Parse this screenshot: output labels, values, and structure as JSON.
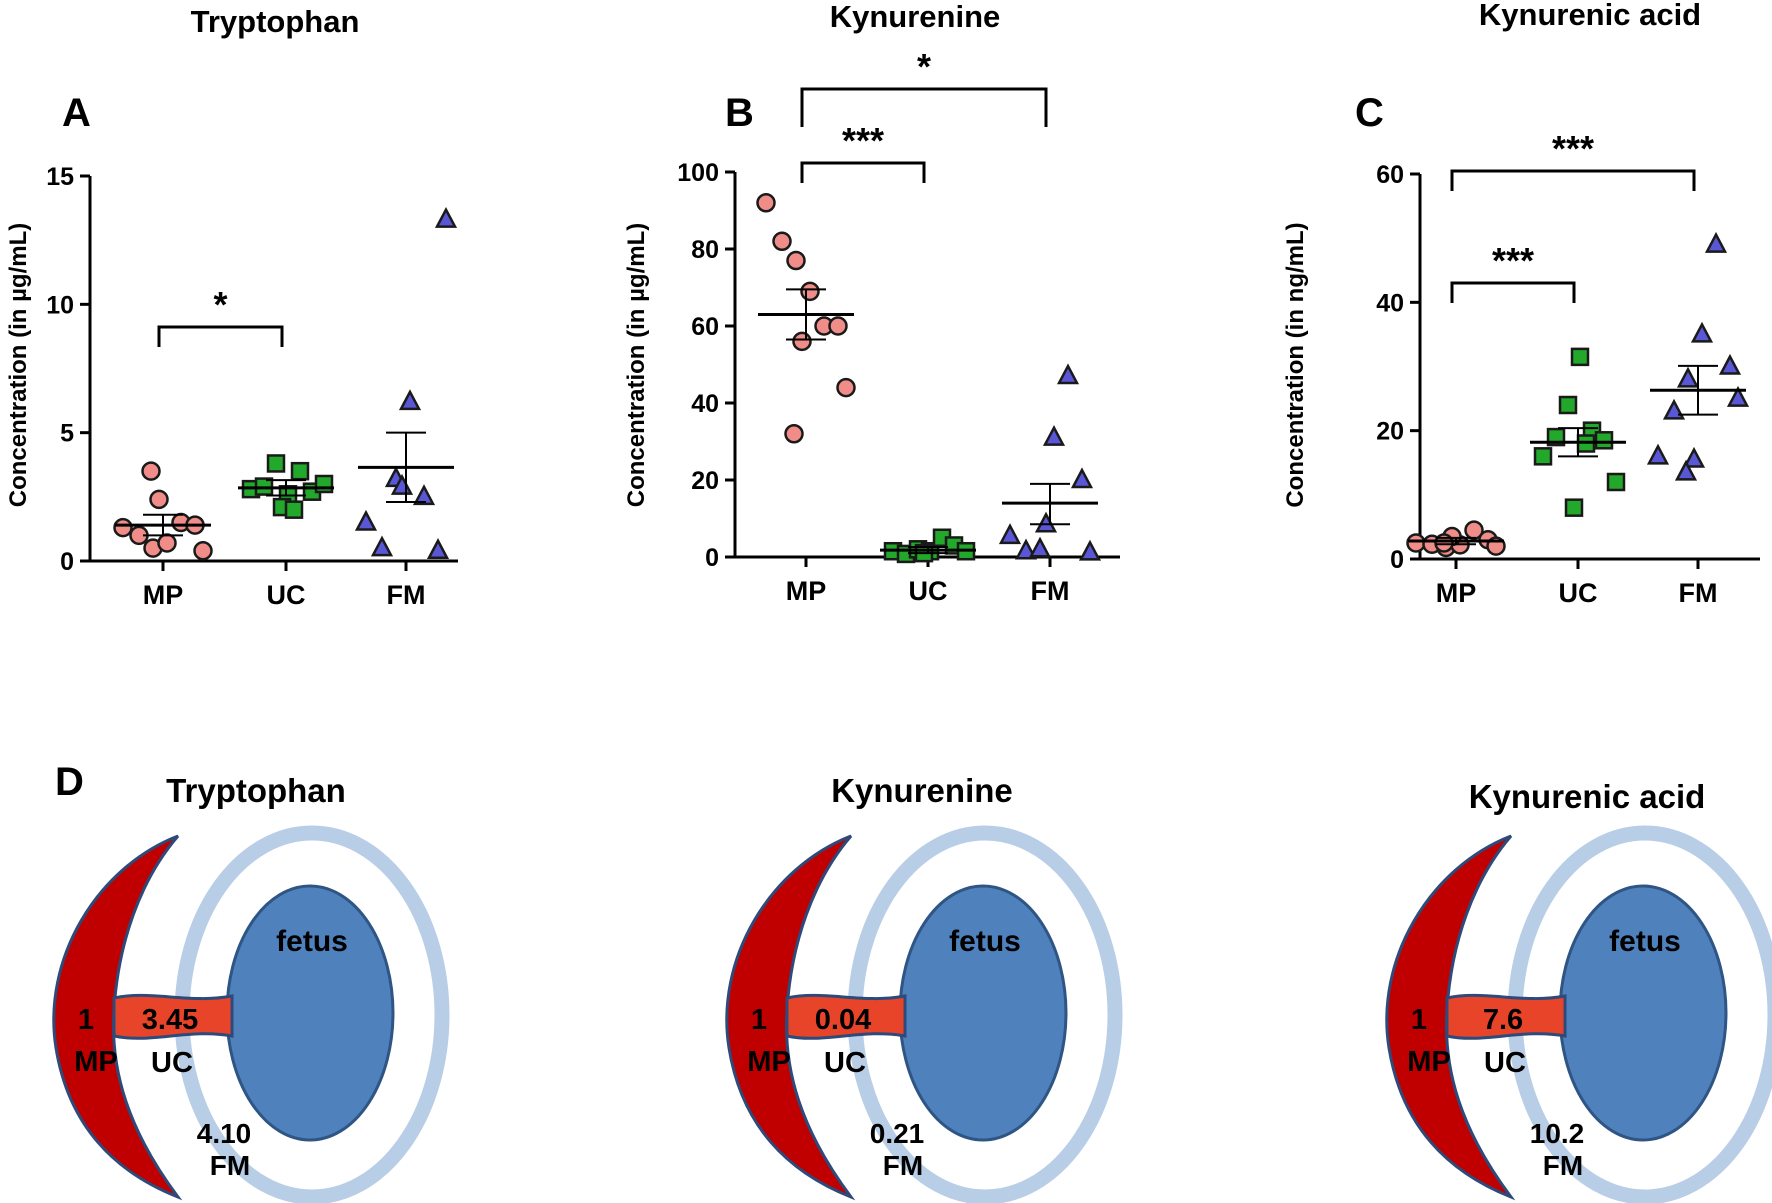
{
  "panels": [
    {
      "letter": "A",
      "title": "Tryptophan",
      "chart_data": {
        "type": "scatter",
        "categories": [
          "MP",
          "UC",
          "FM"
        ],
        "ylabel": "Concentration (in µg/mL)",
        "ylim": [
          0,
          15
        ],
        "yticks": [
          "0",
          "5",
          "10",
          "15"
        ],
        "series": [
          {
            "name": "MP",
            "marker": "circle",
            "color": "#f08d88",
            "values": [
              1.3,
              1.0,
              0.5,
              0.7,
              1.5,
              1.4,
              2.4,
              0.4,
              3.5
            ],
            "mean": 1.4,
            "sem_low": 1.0,
            "sem_high": 1.8
          },
          {
            "name": "UC",
            "marker": "square",
            "color": "#22a82a",
            "values": [
              2.8,
              2.9,
              3.8,
              2.6,
              3.5,
              2.7,
              3.0,
              2.1,
              2.0
            ],
            "mean": 2.85,
            "sem_low": 2.55,
            "sem_high": 3.15
          },
          {
            "name": "FM",
            "marker": "triangle",
            "color": "#5a57d6",
            "values": [
              1.5,
              0.5,
              3.2,
              6.2,
              2.5,
              0.4,
              2.9,
              13.3
            ],
            "mean": 3.65,
            "sem_low": 2.3,
            "sem_high": 5.0
          }
        ],
        "significance": [
          {
            "from": "MP",
            "to": "UC",
            "label": "*"
          }
        ]
      }
    },
    {
      "letter": "B",
      "title": "Kynurenine",
      "chart_data": {
        "type": "scatter",
        "categories": [
          "MP",
          "UC",
          "FM"
        ],
        "ylabel": "Concentration (in µg/mL)",
        "ylim": [
          0,
          100
        ],
        "yticks": [
          "0",
          "20",
          "40",
          "60",
          "80",
          "100"
        ],
        "series": [
          {
            "name": "MP",
            "marker": "circle",
            "color": "#f08d88",
            "values": [
              92,
              82,
              77,
              69,
              60,
              60,
              56,
              44,
              32
            ],
            "mean": 63,
            "sem_low": 56.5,
            "sem_high": 69.5
          },
          {
            "name": "UC",
            "marker": "square",
            "color": "#22a82a",
            "values": [
              1.5,
              0.8,
              2.0,
              1.5,
              5.0,
              3.0,
              1.5,
              1.0
            ],
            "mean": 1.8,
            "sem_low": 1.0,
            "sem_high": 2.6
          },
          {
            "name": "FM",
            "marker": "triangle",
            "color": "#5a57d6",
            "values": [
              5.5,
              1.5,
              2.0,
              31,
              47,
              20,
              8.5,
              1.2
            ],
            "mean": 14,
            "sem_low": 8.5,
            "sem_high": 19
          }
        ],
        "significance": [
          {
            "from": "MP",
            "to": "UC",
            "label": "***"
          },
          {
            "from": "MP",
            "to": "FM",
            "label": "*"
          }
        ]
      }
    },
    {
      "letter": "C",
      "title": "Kynurenic acid",
      "chart_data": {
        "type": "scatter",
        "categories": [
          "MP",
          "UC",
          "FM"
        ],
        "ylabel": "Concentration (in ng/mL)",
        "ylim": [
          0,
          60
        ],
        "yticks": [
          "0",
          "20",
          "40",
          "60"
        ],
        "series": [
          {
            "name": "MP",
            "marker": "circle",
            "color": "#f08d88",
            "values": [
              2.5,
              2.3,
              1.8,
              2.2,
              4.5,
              3.0,
              3.5,
              2.0,
              2.5
            ],
            "mean": 2.8,
            "sem_low": 2.3,
            "sem_high": 3.3
          },
          {
            "name": "UC",
            "marker": "square",
            "color": "#22a82a",
            "values": [
              16,
              19,
              24,
              31.5,
              20,
              18.5,
              12,
              8,
              18
            ],
            "mean": 18.2,
            "sem_low": 16,
            "sem_high": 20.4
          },
          {
            "name": "FM",
            "marker": "triangle",
            "color": "#5a57d6",
            "values": [
              16,
              23,
              28,
              35,
              49,
              30,
              15.5,
              25,
              13.5
            ],
            "mean": 26.3,
            "sem_low": 22.5,
            "sem_high": 30.1
          }
        ],
        "significance": [
          {
            "from": "MP",
            "to": "UC",
            "label": "***"
          },
          {
            "from": "MP",
            "to": "FM",
            "label": "***"
          }
        ]
      }
    }
  ],
  "panel_d": {
    "letter": "D",
    "fetus_label": "fetus",
    "mp_label": "MP",
    "uc_label": "UC",
    "fm_label": "FM",
    "diagrams": [
      {
        "title": "Tryptophan",
        "mp_value": "1",
        "uc_value": "3.45",
        "fm_value": "4.10"
      },
      {
        "title": "Kynurenine",
        "mp_value": "1",
        "uc_value": "0.04",
        "fm_value": "0.21"
      },
      {
        "title": "Kynurenic acid",
        "mp_value": "1",
        "uc_value": "7.6",
        "fm_value": "10.2"
      }
    ]
  }
}
